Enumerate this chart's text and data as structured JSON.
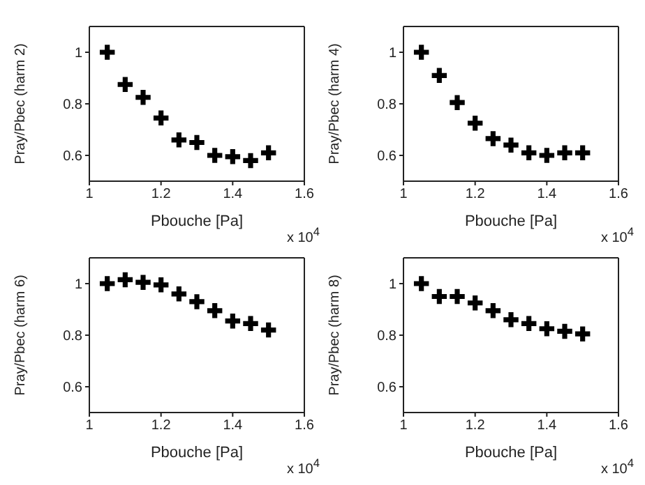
{
  "chart_data": [
    {
      "type": "scatter",
      "xlabel": "Pbouche [Pa]",
      "ylabel": "Pray/Pbec (harm 2)",
      "annotations": [
        "x 10$^{4}$"
      ],
      "x": [
        1.05,
        1.1,
        1.15,
        1.2,
        1.25,
        1.3,
        1.35,
        1.4,
        1.45,
        1.5
      ],
      "series": [
        {
          "color": "#000000",
          "values": [
            1.0,
            0.875,
            0.825,
            0.745,
            0.66,
            0.65,
            0.6,
            0.595,
            0.58,
            0.61
          ]
        }
      ],
      "xlim": [
        1,
        1.6
      ],
      "xticks": [
        1,
        1.2,
        1.4,
        1.6
      ],
      "ylim": [
        0.5,
        1.1
      ],
      "yticks": [
        0.6,
        0.8,
        1
      ],
      "marker": "cross",
      "grid": false,
      "legend": false
    },
    {
      "type": "scatter",
      "xlabel": "Pbouche [Pa]",
      "ylabel": "Pray/Pbec (harm 4)",
      "annotations": [
        "x 10$^{4}$"
      ],
      "x": [
        1.05,
        1.1,
        1.15,
        1.2,
        1.25,
        1.3,
        1.35,
        1.4,
        1.45,
        1.5
      ],
      "series": [
        {
          "color": "#000000",
          "values": [
            1.0,
            0.91,
            0.805,
            0.725,
            0.665,
            0.64,
            0.61,
            0.6,
            0.61,
            0.61
          ]
        }
      ],
      "xlim": [
        1,
        1.6
      ],
      "xticks": [
        1,
        1.2,
        1.4,
        1.6
      ],
      "ylim": [
        0.5,
        1.1
      ],
      "yticks": [
        0.6,
        0.8,
        1
      ],
      "marker": "cross",
      "grid": false,
      "legend": false
    },
    {
      "type": "scatter",
      "xlabel": "Pbouche [Pa]",
      "ylabel": "Pray/Pbec (harm 6)",
      "annotations": [
        "x 10$^{4}$"
      ],
      "x": [
        1.05,
        1.1,
        1.15,
        1.2,
        1.25,
        1.3,
        1.35,
        1.4,
        1.45,
        1.5
      ],
      "series": [
        {
          "color": "#000000",
          "values": [
            1.0,
            1.015,
            1.005,
            0.995,
            0.96,
            0.93,
            0.895,
            0.855,
            0.845,
            0.82
          ]
        }
      ],
      "xlim": [
        1,
        1.6
      ],
      "xticks": [
        1,
        1.2,
        1.4,
        1.6
      ],
      "ylim": [
        0.5,
        1.1
      ],
      "yticks": [
        0.6,
        0.8,
        1
      ],
      "marker": "cross",
      "grid": false,
      "legend": false
    },
    {
      "type": "scatter",
      "xlabel": "Pbouche [Pa]",
      "ylabel": "Pray/Pbec (harm 8)",
      "annotations": [
        "x 10$^{4}$"
      ],
      "x": [
        1.05,
        1.1,
        1.15,
        1.2,
        1.25,
        1.3,
        1.35,
        1.4,
        1.45,
        1.5
      ],
      "series": [
        {
          "color": "#000000",
          "values": [
            1.0,
            0.95,
            0.95,
            0.925,
            0.895,
            0.86,
            0.845,
            0.825,
            0.815,
            0.805
          ]
        }
      ],
      "xlim": [
        1,
        1.6
      ],
      "xticks": [
        1,
        1.2,
        1.4,
        1.6
      ],
      "ylim": [
        0.5,
        1.1
      ],
      "yticks": [
        0.6,
        0.8,
        1
      ],
      "marker": "cross",
      "grid": false,
      "legend": false
    }
  ]
}
